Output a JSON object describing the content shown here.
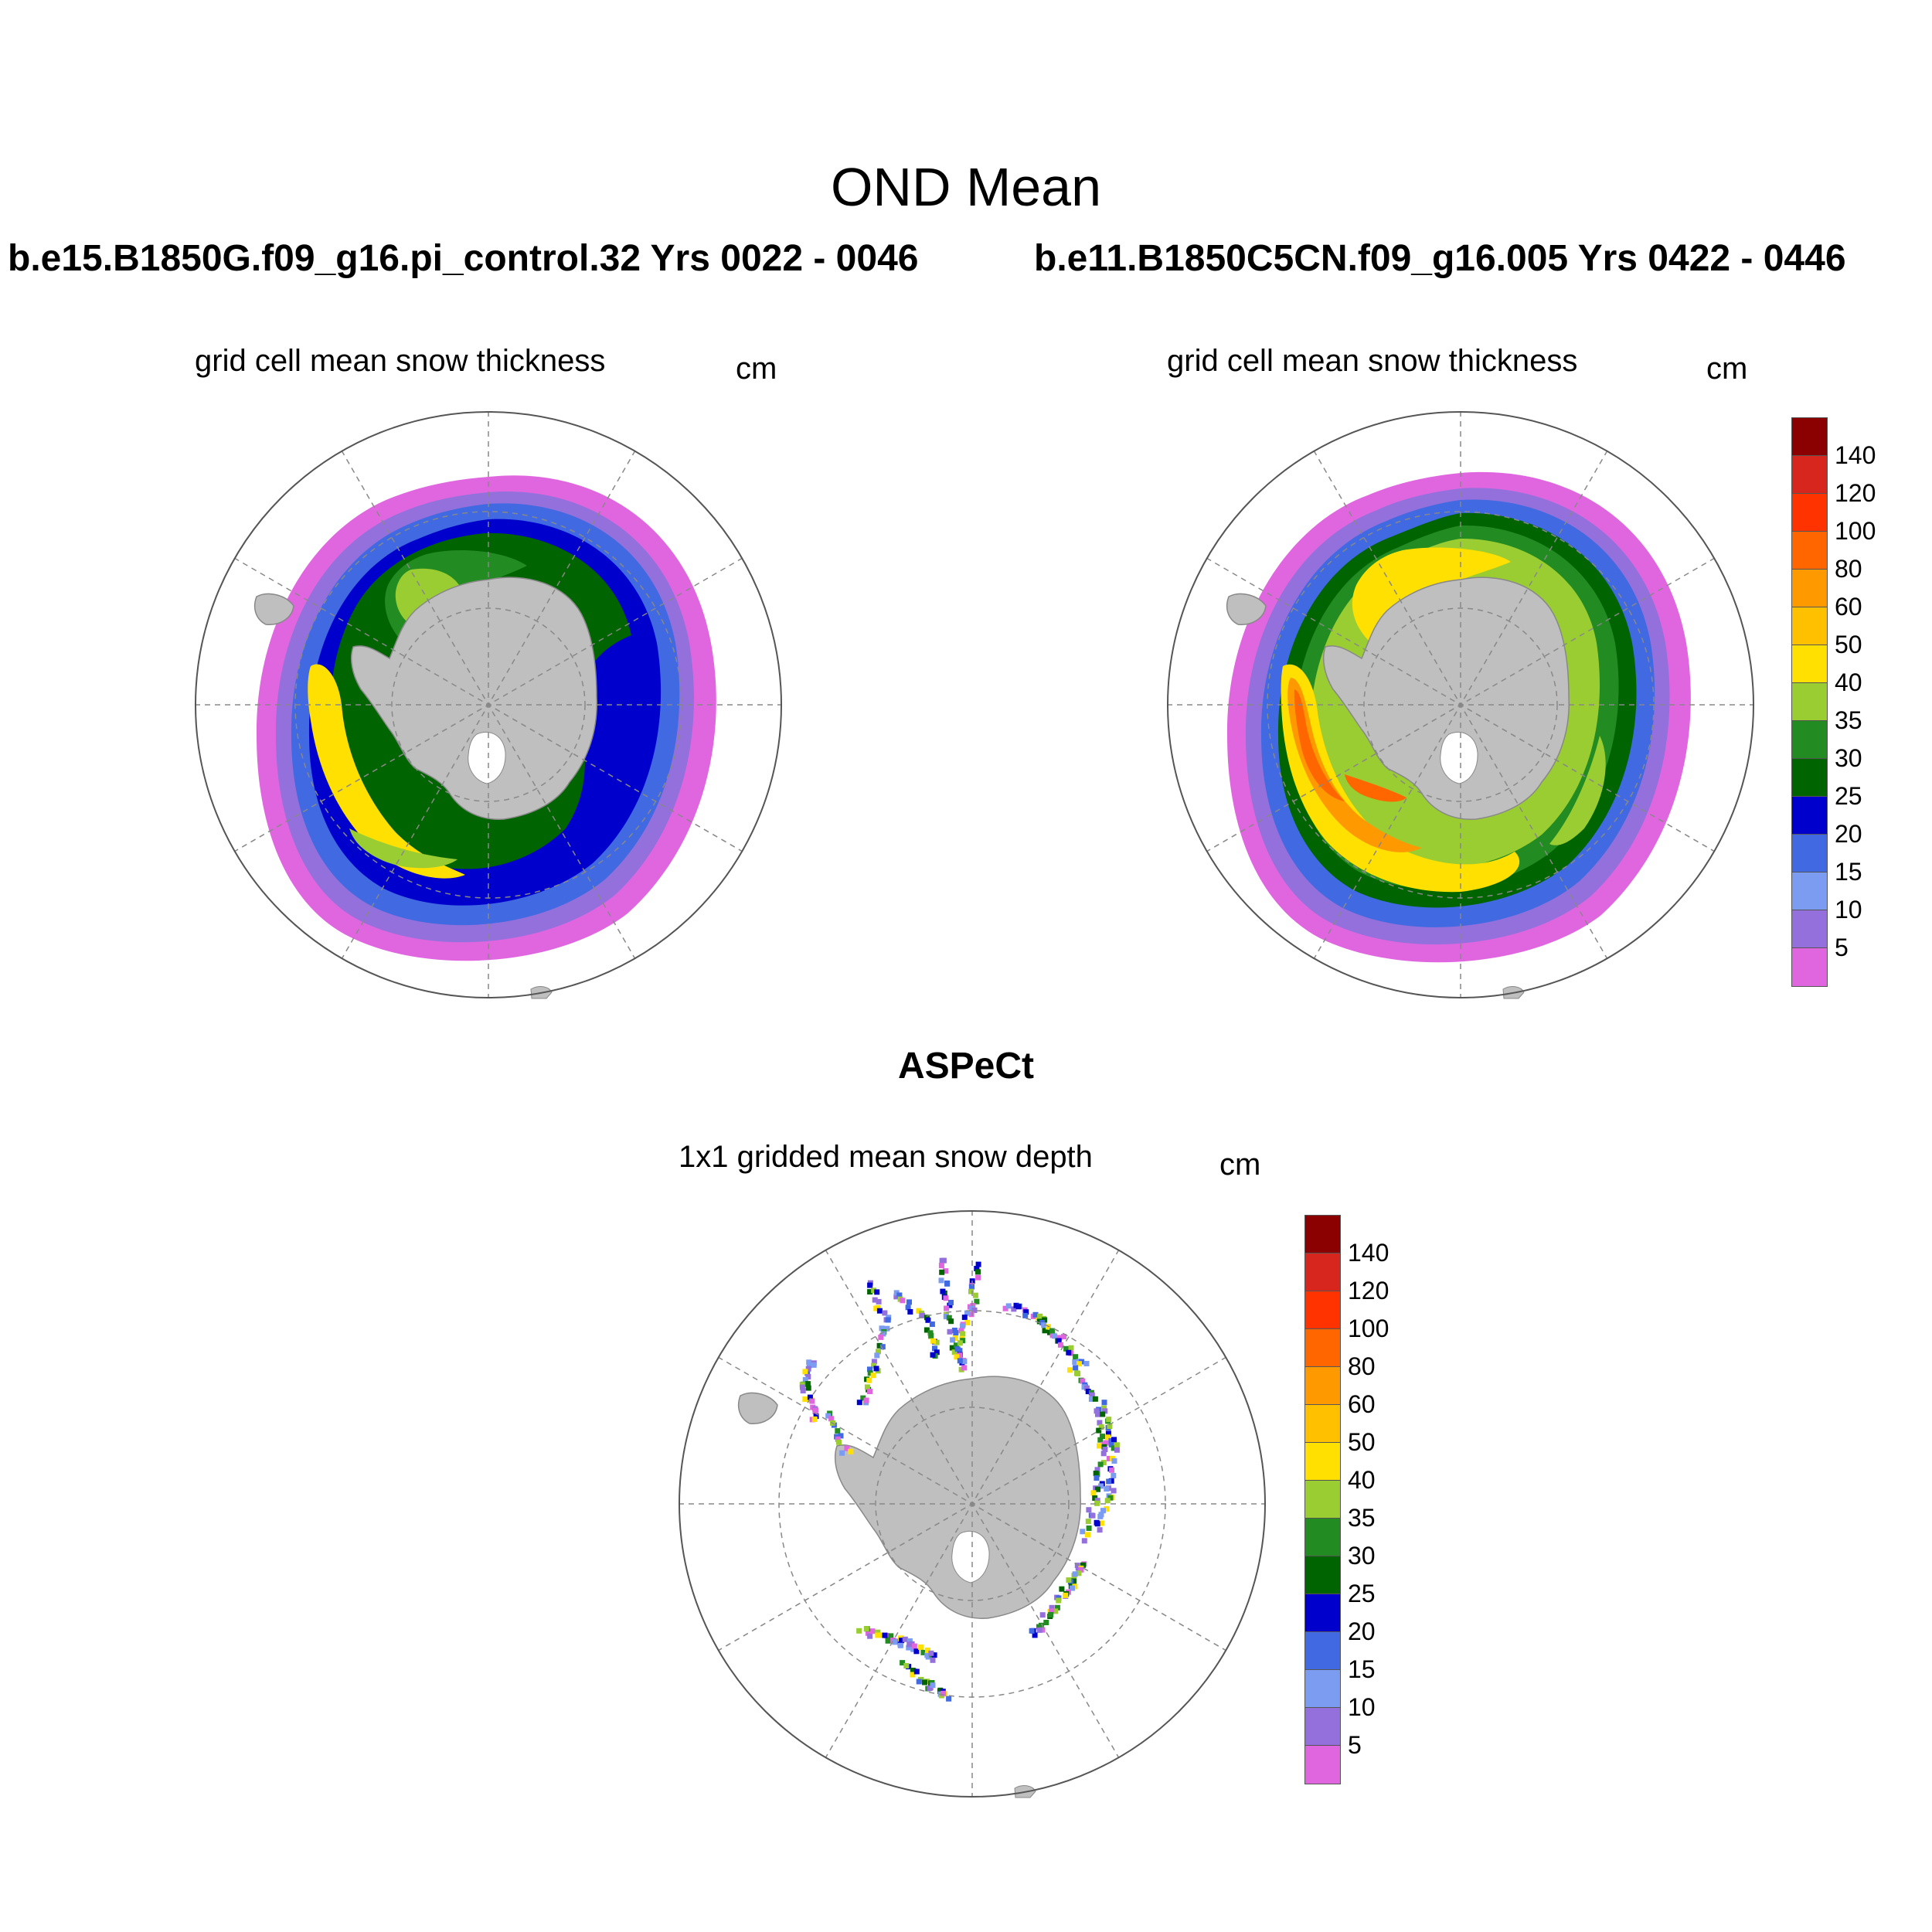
{
  "title": "OND Mean",
  "panels": [
    {
      "case": "b.e15.B1850G.f09_g16.pi_control.32  Yrs 0022 - 0046",
      "variable": "grid cell mean snow thickness",
      "units": "cm"
    },
    {
      "case": "b.e11.B1850C5CN.f09_g16.005  Yrs 0422 - 0446",
      "variable": "grid cell mean snow thickness",
      "units": "cm"
    },
    {
      "case": "ASPeCt",
      "variable": "1x1 gridded mean snow depth",
      "units": "cm"
    }
  ],
  "colorbar": {
    "labels": [
      "140",
      "120",
      "100",
      "80",
      "60",
      "50",
      "40",
      "35",
      "30",
      "25",
      "20",
      "15",
      "10",
      "5"
    ],
    "colors": [
      "#8b0000",
      "#d7261e",
      "#ff3300",
      "#ff6600",
      "#ff9900",
      "#ffc000",
      "#ffe000",
      "#9acd32",
      "#228b22",
      "#006400",
      "#0000cd",
      "#4169e1",
      "#7b9cf0",
      "#9370db",
      "#e066e0"
    ]
  },
  "land_color": "#bfbfbf"
}
